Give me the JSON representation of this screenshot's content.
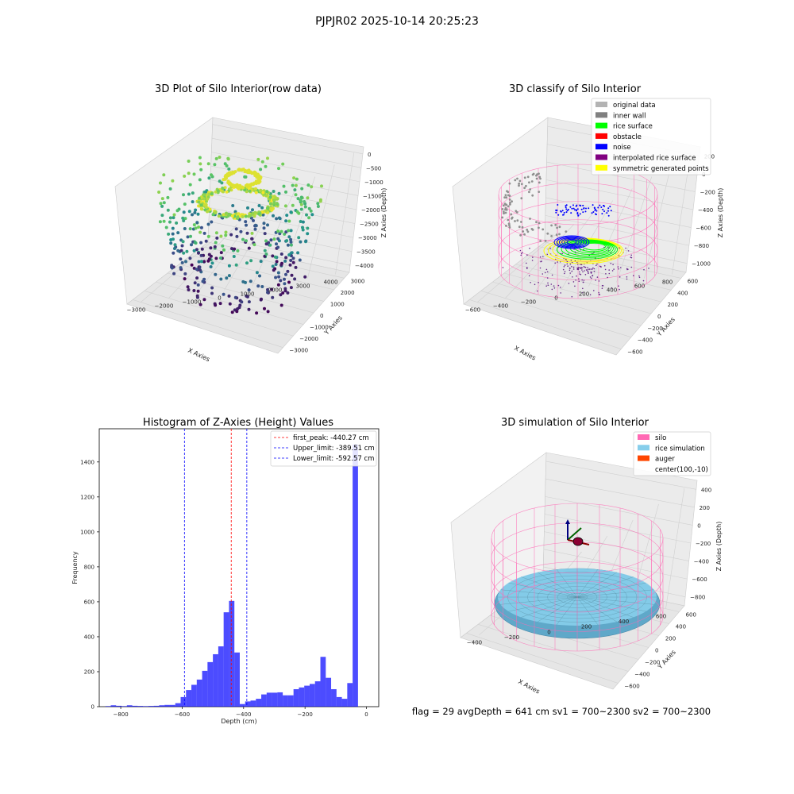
{
  "suptitle": "PJPJR02 2025-10-14 20:25:23",
  "footer": "flag = 29  avgDepth = 641 cm  sv1 = 700~2300  sv2 = 700~2300",
  "chart_data": [
    {
      "type": "scatter",
      "projection": "3d",
      "title": "3D Plot of Silo Interior(row data)",
      "xlabel": "X Axies",
      "ylabel": "Y Axies",
      "zlabel": "Z Axies (Depth)",
      "x_ticks": [
        "−3000",
        "−2000",
        "−1000",
        "0",
        "1000",
        "2000",
        "3000",
        "4000"
      ],
      "y_ticks": [
        "−3000",
        "−2000",
        "−1000",
        "0",
        "1000",
        "2000",
        "3000"
      ],
      "z_ticks": [
        "0",
        "−500",
        "−1000",
        "−1500",
        "−2000",
        "−2500",
        "−3000",
        "−3500",
        "−4000"
      ],
      "colormap": "viridis"
    },
    {
      "type": "scatter",
      "projection": "3d",
      "title": "3D classify of Silo Interior",
      "xlabel": "X Axies",
      "ylabel": "Y Axies",
      "zlabel": "Z Axies (Depth)",
      "x_ticks": [
        "−600",
        "−400",
        "−200",
        "0",
        "200",
        "400",
        "600",
        "800"
      ],
      "y_ticks": [
        "−600",
        "−400",
        "−200",
        "0",
        "200",
        "400",
        "600"
      ],
      "z_ticks": [
        "200",
        "0",
        "−200",
        "−400",
        "−600",
        "−800",
        "−1000"
      ],
      "legend": [
        {
          "label": "original data",
          "color": "#b3b3b3"
        },
        {
          "label": "inner wall",
          "color": "#808080"
        },
        {
          "label": "rice surface",
          "color": "#00ff00"
        },
        {
          "label": "obstacle",
          "color": "#ff0000"
        },
        {
          "label": "noise",
          "color": "#0000ff"
        },
        {
          "label": "interpolated rice surface",
          "color": "#800080"
        },
        {
          "label": "symmetric generated points",
          "color": "#ffff00"
        }
      ]
    },
    {
      "type": "bar",
      "title": "Histogram of Z-Axies (Height) Values",
      "xlabel": "Depth (cm)",
      "ylabel": "Frequency",
      "xlim": [
        -870,
        40
      ],
      "ylim": [
        0,
        1590
      ],
      "x_ticks": [
        -800,
        -600,
        -400,
        -200,
        0
      ],
      "x_tick_labels": [
        "−800",
        "−600",
        "−400",
        "−200",
        "0"
      ],
      "y_ticks": [
        0,
        200,
        400,
        600,
        800,
        1000,
        1200,
        1400
      ],
      "bin_width": 17.5,
      "bin_starts": [
        -850,
        -832.5,
        -815,
        -797.5,
        -780,
        -762.5,
        -745,
        -727.5,
        -710,
        -692.5,
        -675,
        -657.5,
        -640,
        -622.5,
        -605,
        -587.5,
        -570,
        -552.5,
        -535,
        -517.5,
        -500,
        -482.5,
        -465,
        -447.5,
        -430,
        -412.5,
        -395,
        -377.5,
        -360,
        -342.5,
        -325,
        -307.5,
        -290,
        -272.5,
        -255,
        -237.5,
        -220,
        -202.5,
        -185,
        -167.5,
        -150,
        -132.5,
        -115,
        -97.5,
        -80,
        -62.5,
        -45,
        -27.5,
        -10
      ],
      "values": [
        3,
        8,
        5,
        3,
        8,
        5,
        4,
        3,
        4,
        5,
        8,
        10,
        10,
        20,
        55,
        95,
        125,
        155,
        205,
        255,
        300,
        345,
        540,
        605,
        310,
        15,
        30,
        35,
        45,
        70,
        80,
        80,
        82,
        65,
        65,
        100,
        110,
        120,
        130,
        145,
        285,
        165,
        100,
        55,
        45,
        135,
        1500,
        0,
        0
      ],
      "color": "#0000ff",
      "alpha": 0.7,
      "vlines": [
        {
          "label": "first_peak: -440.27 cm",
          "x": -440.27,
          "color": "#ff0000"
        },
        {
          "label": "Upper_limit: -389.51 cm",
          "x": -389.51,
          "color": "#0000ff"
        },
        {
          "label": "Lower_limit: -592.57 cm",
          "x": -592.57,
          "color": "#0000ff"
        }
      ]
    },
    {
      "type": "surface",
      "projection": "3d",
      "title": "3D simulation of Silo Interior",
      "xlabel": "X Axies",
      "ylabel": "Y Axies",
      "zlabel": "Z Axies (Depth)",
      "x_ticks": [
        "−400",
        "−200",
        "0",
        "200",
        "400",
        "600"
      ],
      "y_ticks": [
        "−600",
        "−400",
        "−200",
        "0",
        "200",
        "400",
        "600"
      ],
      "z_ticks": [
        "400",
        "200",
        "0",
        "−200",
        "−400",
        "−600",
        "−800"
      ],
      "legend": [
        {
          "label": "silo",
          "color": "#ff69b4"
        },
        {
          "label": "rice simulation",
          "color": "#87ceeb"
        },
        {
          "label": "auger",
          "color": "#ff4500"
        },
        {
          "label": "center(100,-10)",
          "color": ""
        }
      ]
    }
  ]
}
